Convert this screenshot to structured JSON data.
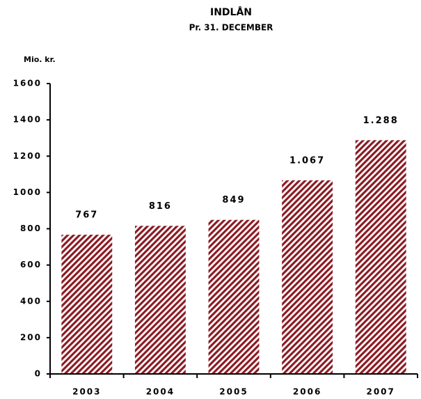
{
  "chart_data": {
    "type": "bar",
    "title": "INDLÅN",
    "subtitle": "Pr. 31. DECEMBER",
    "y_label": "Mio. kr.",
    "categories": [
      "2003",
      "2004",
      "2005",
      "2006",
      "2007"
    ],
    "values": [
      767,
      816,
      849,
      1067,
      1288
    ],
    "value_labels": [
      "767",
      "816",
      "849",
      "1.067",
      "1.288"
    ],
    "color": "#8b1c24",
    "pattern": "hatch",
    "ylim": [
      0,
      1600
    ],
    "yticks": [
      0,
      200,
      400,
      600,
      800,
      1000,
      1200,
      1400,
      1600
    ],
    "grid": false
  }
}
